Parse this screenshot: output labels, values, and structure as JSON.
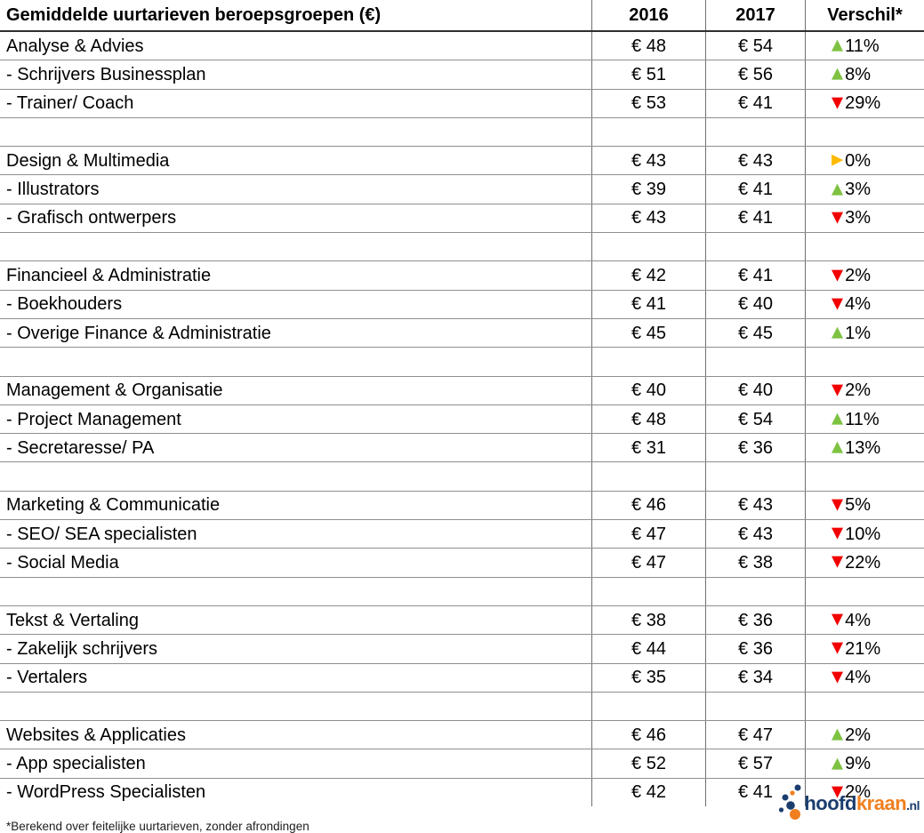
{
  "table": {
    "title": "Gemiddelde uurtarieven beroepsgroepen (€)",
    "currency_prefix": "€ "
  },
  "chart_data": {
    "type": "table",
    "title": "Gemiddelde uurtarieven beroepsgroepen (€)",
    "columns": [
      "2016",
      "2017",
      "Verschil*"
    ],
    "rows": [
      {
        "label": "Analyse & Advies",
        "y2016": 48,
        "y2017": 54,
        "verschil_pct": 11,
        "trend": "up"
      },
      {
        "label": "- Schrijvers Businessplan",
        "y2016": 51,
        "y2017": 56,
        "verschil_pct": 8,
        "trend": "up"
      },
      {
        "label": "- Trainer/ Coach",
        "y2016": 53,
        "y2017": 41,
        "verschil_pct": 29,
        "trend": "down"
      },
      {
        "spacer": true
      },
      {
        "label": "Design & Multimedia",
        "y2016": 43,
        "y2017": 43,
        "verschil_pct": 0,
        "trend": "flat"
      },
      {
        "label": "- Illustrators",
        "y2016": 39,
        "y2017": 41,
        "verschil_pct": 3,
        "trend": "up"
      },
      {
        "label": "- Grafisch ontwerpers",
        "y2016": 43,
        "y2017": 41,
        "verschil_pct": 3,
        "trend": "down"
      },
      {
        "spacer": true
      },
      {
        "label": "Financieel & Administratie",
        "y2016": 42,
        "y2017": 41,
        "verschil_pct": 2,
        "trend": "down"
      },
      {
        "label": "- Boekhouders",
        "y2016": 41,
        "y2017": 40,
        "verschil_pct": 4,
        "trend": "down"
      },
      {
        "label": "- Overige Finance & Administratie",
        "y2016": 45,
        "y2017": 45,
        "verschil_pct": 1,
        "trend": "up"
      },
      {
        "spacer": true
      },
      {
        "label": "Management & Organisatie",
        "y2016": 40,
        "y2017": 40,
        "verschil_pct": 2,
        "trend": "down"
      },
      {
        "label": "- Project Management",
        "y2016": 48,
        "y2017": 54,
        "verschil_pct": 11,
        "trend": "up"
      },
      {
        "label": "- Secretaresse/ PA",
        "y2016": 31,
        "y2017": 36,
        "verschil_pct": 13,
        "trend": "up"
      },
      {
        "spacer": true
      },
      {
        "label": "Marketing & Communicatie",
        "y2016": 46,
        "y2017": 43,
        "verschil_pct": 5,
        "trend": "down"
      },
      {
        "label": "- SEO/ SEA specialisten",
        "y2016": 47,
        "y2017": 43,
        "verschil_pct": 10,
        "trend": "down"
      },
      {
        "label": "- Social Media",
        "y2016": 47,
        "y2017": 38,
        "verschil_pct": 22,
        "trend": "down"
      },
      {
        "spacer": true
      },
      {
        "label": "Tekst & Vertaling",
        "y2016": 38,
        "y2017": 36,
        "verschil_pct": 4,
        "trend": "down"
      },
      {
        "label": "- Zakelijk schrijvers",
        "y2016": 44,
        "y2017": 36,
        "verschil_pct": 21,
        "trend": "down"
      },
      {
        "label": "- Vertalers",
        "y2016": 35,
        "y2017": 34,
        "verschil_pct": 4,
        "trend": "down"
      },
      {
        "spacer": true
      },
      {
        "label": "Websites & Applicaties",
        "y2016": 46,
        "y2017": 47,
        "verschil_pct": 2,
        "trend": "up"
      },
      {
        "label": "- App specialisten",
        "y2016": 52,
        "y2017": 57,
        "verschil_pct": 9,
        "trend": "up"
      },
      {
        "label": "- WordPress Specialisten",
        "y2016": 42,
        "y2017": 41,
        "verschil_pct": 2,
        "trend": "down"
      }
    ]
  },
  "trend_icons": {
    "up": "▲",
    "down": "▼",
    "flat": "▶"
  },
  "trend_colors": {
    "up": "#7EC242",
    "down": "#F20000",
    "flat": "#FFB900"
  },
  "footnote": "*Berekend over feitelijke uurtarieven, zonder afrondingen",
  "logo": {
    "part1": "hoofd",
    "part2": "kraan",
    "part3": ".nl",
    "navy": "#1B3D6E",
    "orange": "#F07F1F"
  }
}
